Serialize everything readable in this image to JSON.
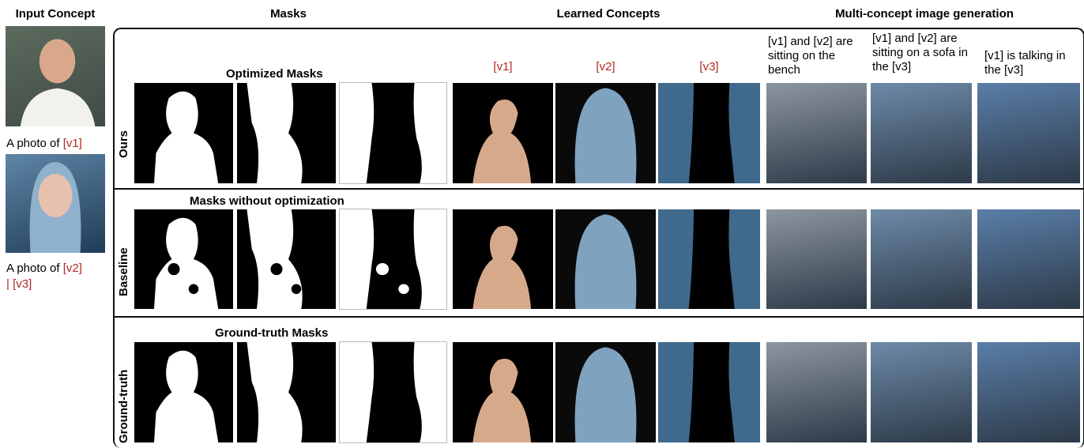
{
  "header": {
    "input": "Input Concept",
    "masks": "Masks",
    "learned": "Learned Concepts",
    "generation": "Multi-concept image generation"
  },
  "inputs": [
    {
      "prefix": "A photo of",
      "token": "[v1]"
    },
    {
      "prefix": "A photo of",
      "token": "[v2]",
      "extra": "| [v3]"
    }
  ],
  "concept_labels": [
    "[v1]",
    "[v2]",
    "[v3]"
  ],
  "prompts": [
    "[v1] and [v2] are sitting on the bench",
    "[v1] and [v2] are sitting on a sofa in the [v3]",
    "[v1] is talking in the [v3]"
  ],
  "rows": [
    {
      "label": "Ours",
      "mask_title": "Optimized Masks"
    },
    {
      "label": "Baseline",
      "mask_title": "Masks without optimization"
    },
    {
      "label": "Ground-truth",
      "mask_title": "Ground-truth Masks"
    }
  ]
}
